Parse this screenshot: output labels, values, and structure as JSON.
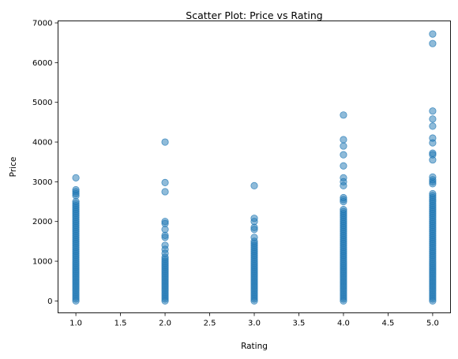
{
  "chart_data": {
    "type": "scatter",
    "title": "Scatter Plot: Price vs Rating",
    "xlabel": "Rating",
    "ylabel": "Price",
    "xlim": [
      0.8,
      5.2
    ],
    "ylim": [
      -300,
      7050
    ],
    "xticks": [
      1.0,
      1.5,
      2.0,
      2.5,
      3.0,
      3.5,
      4.0,
      4.5,
      5.0
    ],
    "xtick_labels": [
      "1.0",
      "1.5",
      "2.0",
      "2.5",
      "3.0",
      "3.5",
      "4.0",
      "4.5",
      "5.0"
    ],
    "yticks": [
      0,
      1000,
      2000,
      3000,
      4000,
      5000,
      6000,
      7000
    ],
    "ytick_labels": [
      "0",
      "1000",
      "2000",
      "3000",
      "4000",
      "5000",
      "6000",
      "7000"
    ],
    "grid": false,
    "marker_color": "#1f77b4",
    "marker_alpha": 0.5,
    "series": [
      {
        "rating": 1.0,
        "prices": [
          3100,
          2800,
          2750,
          2700,
          2650,
          2500,
          2450,
          2400,
          2350,
          2300,
          2250,
          2200,
          2150,
          2100,
          2050,
          2000,
          1950,
          1900,
          1850,
          1800,
          1750,
          1700,
          1650,
          1600,
          1550,
          1500,
          1450,
          1400,
          1350,
          1300,
          1250,
          1200,
          1150,
          1100,
          1050,
          1000,
          950,
          900,
          850,
          800,
          750,
          700,
          650,
          600,
          550,
          500,
          450,
          400,
          350,
          300,
          250,
          200,
          150,
          100,
          50,
          0
        ]
      },
      {
        "rating": 2.0,
        "prices": [
          4000,
          2980,
          2750,
          2000,
          1950,
          1800,
          1650,
          1600,
          1400,
          1300,
          1200,
          1100,
          1050,
          1000,
          950,
          900,
          850,
          800,
          750,
          700,
          650,
          600,
          550,
          500,
          450,
          400,
          350,
          300,
          250,
          200,
          150,
          100,
          50,
          0
        ]
      },
      {
        "rating": 3.0,
        "prices": [
          2900,
          2080,
          2000,
          1850,
          1800,
          1600,
          1500,
          1450,
          1400,
          1350,
          1300,
          1250,
          1200,
          1150,
          1100,
          1050,
          1000,
          950,
          900,
          850,
          800,
          750,
          700,
          650,
          600,
          550,
          500,
          450,
          400,
          350,
          300,
          250,
          200,
          150,
          100,
          50,
          0
        ]
      },
      {
        "rating": 4.0,
        "prices": [
          4680,
          4060,
          3900,
          3680,
          3400,
          3100,
          3000,
          2900,
          2600,
          2550,
          2500,
          2300,
          2250,
          2200,
          2150,
          2100,
          2050,
          2000,
          1950,
          1900,
          1850,
          1800,
          1750,
          1700,
          1650,
          1600,
          1550,
          1500,
          1450,
          1400,
          1350,
          1300,
          1250,
          1200,
          1150,
          1100,
          1050,
          1000,
          950,
          900,
          850,
          800,
          750,
          700,
          650,
          600,
          550,
          500,
          450,
          400,
          350,
          300,
          250,
          200,
          150,
          100,
          50,
          0
        ]
      },
      {
        "rating": 5.0,
        "prices": [
          6720,
          6480,
          4780,
          4580,
          4400,
          4100,
          3980,
          3720,
          3680,
          3550,
          3120,
          3050,
          3000,
          2950,
          2700,
          2650,
          2600,
          2550,
          2500,
          2450,
          2400,
          2350,
          2300,
          2250,
          2200,
          2150,
          2100,
          2050,
          2000,
          1950,
          1900,
          1850,
          1800,
          1750,
          1700,
          1650,
          1600,
          1550,
          1500,
          1450,
          1400,
          1350,
          1300,
          1250,
          1200,
          1150,
          1100,
          1050,
          1000,
          950,
          900,
          850,
          800,
          750,
          700,
          650,
          600,
          550,
          500,
          450,
          400,
          350,
          300,
          250,
          200,
          150,
          100,
          50,
          0
        ]
      }
    ]
  }
}
